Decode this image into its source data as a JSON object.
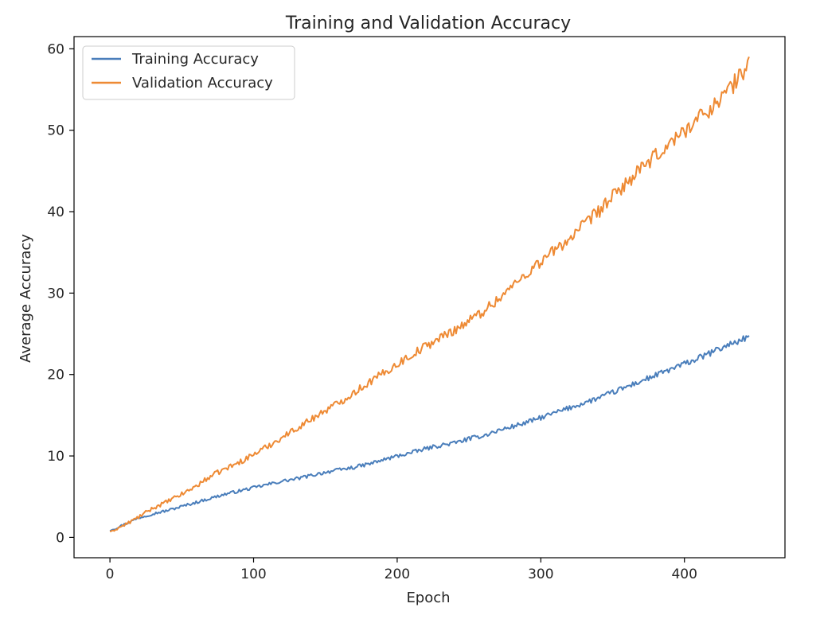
{
  "chart_data": {
    "type": "line",
    "title": "Training and Validation Accuracy",
    "xlabel": "Epoch",
    "ylabel": "Average Accuracy",
    "xlim": [
      -25,
      470
    ],
    "ylim": [
      -2.5,
      61.5
    ],
    "xticks": [
      0,
      100,
      200,
      300,
      400
    ],
    "yticks": [
      0,
      10,
      20,
      30,
      40,
      50,
      60
    ],
    "grid": false,
    "legend_position": "top-left",
    "epochs": 446,
    "series": [
      {
        "name": "Training Accuracy",
        "color": "#4a7ebb",
        "points": [
          [
            0,
            0.8
          ],
          [
            10,
            1.6
          ],
          [
            20,
            2.4
          ],
          [
            30,
            2.9
          ],
          [
            40,
            3.3
          ],
          [
            50,
            3.8
          ],
          [
            60,
            4.3
          ],
          [
            70,
            4.8
          ],
          [
            80,
            5.3
          ],
          [
            90,
            5.7
          ],
          [
            100,
            6.1
          ],
          [
            110,
            6.5
          ],
          [
            120,
            6.9
          ],
          [
            130,
            7.2
          ],
          [
            140,
            7.6
          ],
          [
            150,
            8.0
          ],
          [
            160,
            8.3
          ],
          [
            170,
            8.6
          ],
          [
            180,
            9.0
          ],
          [
            190,
            9.5
          ],
          [
            200,
            10.0
          ],
          [
            210,
            10.4
          ],
          [
            220,
            10.9
          ],
          [
            230,
            11.3
          ],
          [
            240,
            11.6
          ],
          [
            250,
            12.1
          ],
          [
            260,
            12.5
          ],
          [
            270,
            13.1
          ],
          [
            280,
            13.6
          ],
          [
            290,
            14.1
          ],
          [
            300,
            14.7
          ],
          [
            310,
            15.3
          ],
          [
            320,
            15.9
          ],
          [
            330,
            16.5
          ],
          [
            340,
            17.1
          ],
          [
            350,
            17.8
          ],
          [
            360,
            18.5
          ],
          [
            370,
            19.2
          ],
          [
            380,
            19.9
          ],
          [
            390,
            20.6
          ],
          [
            400,
            21.3
          ],
          [
            410,
            22.0
          ],
          [
            420,
            22.8
          ],
          [
            430,
            23.6
          ],
          [
            440,
            24.3
          ],
          [
            445,
            24.7
          ]
        ],
        "noise": 0.35
      },
      {
        "name": "Validation Accuracy",
        "color": "#ee8a34",
        "points": [
          [
            0,
            0.7
          ],
          [
            10,
            1.5
          ],
          [
            20,
            2.5
          ],
          [
            30,
            3.6
          ],
          [
            40,
            4.4
          ],
          [
            50,
            5.3
          ],
          [
            60,
            6.3
          ],
          [
            70,
            7.5
          ],
          [
            80,
            8.4
          ],
          [
            90,
            9.2
          ],
          [
            100,
            10.2
          ],
          [
            110,
            11.2
          ],
          [
            120,
            12.3
          ],
          [
            130,
            13.4
          ],
          [
            140,
            14.5
          ],
          [
            150,
            15.6
          ],
          [
            160,
            16.6
          ],
          [
            170,
            17.8
          ],
          [
            180,
            19.0
          ],
          [
            190,
            20.1
          ],
          [
            200,
            21.3
          ],
          [
            210,
            22.4
          ],
          [
            220,
            23.5
          ],
          [
            230,
            24.5
          ],
          [
            240,
            25.5
          ],
          [
            250,
            26.6
          ],
          [
            260,
            27.8
          ],
          [
            270,
            29.2
          ],
          [
            280,
            30.8
          ],
          [
            290,
            32.4
          ],
          [
            300,
            33.9
          ],
          [
            310,
            35.3
          ],
          [
            320,
            36.7
          ],
          [
            330,
            38.3
          ],
          [
            340,
            40.0
          ],
          [
            350,
            41.8
          ],
          [
            360,
            43.6
          ],
          [
            370,
            45.2
          ],
          [
            380,
            46.8
          ],
          [
            390,
            48.4
          ],
          [
            400,
            50.0
          ],
          [
            410,
            51.5
          ],
          [
            420,
            53.0
          ],
          [
            430,
            54.8
          ],
          [
            440,
            56.9
          ],
          [
            445,
            58.5
          ]
        ],
        "noise": 0.5
      }
    ]
  }
}
